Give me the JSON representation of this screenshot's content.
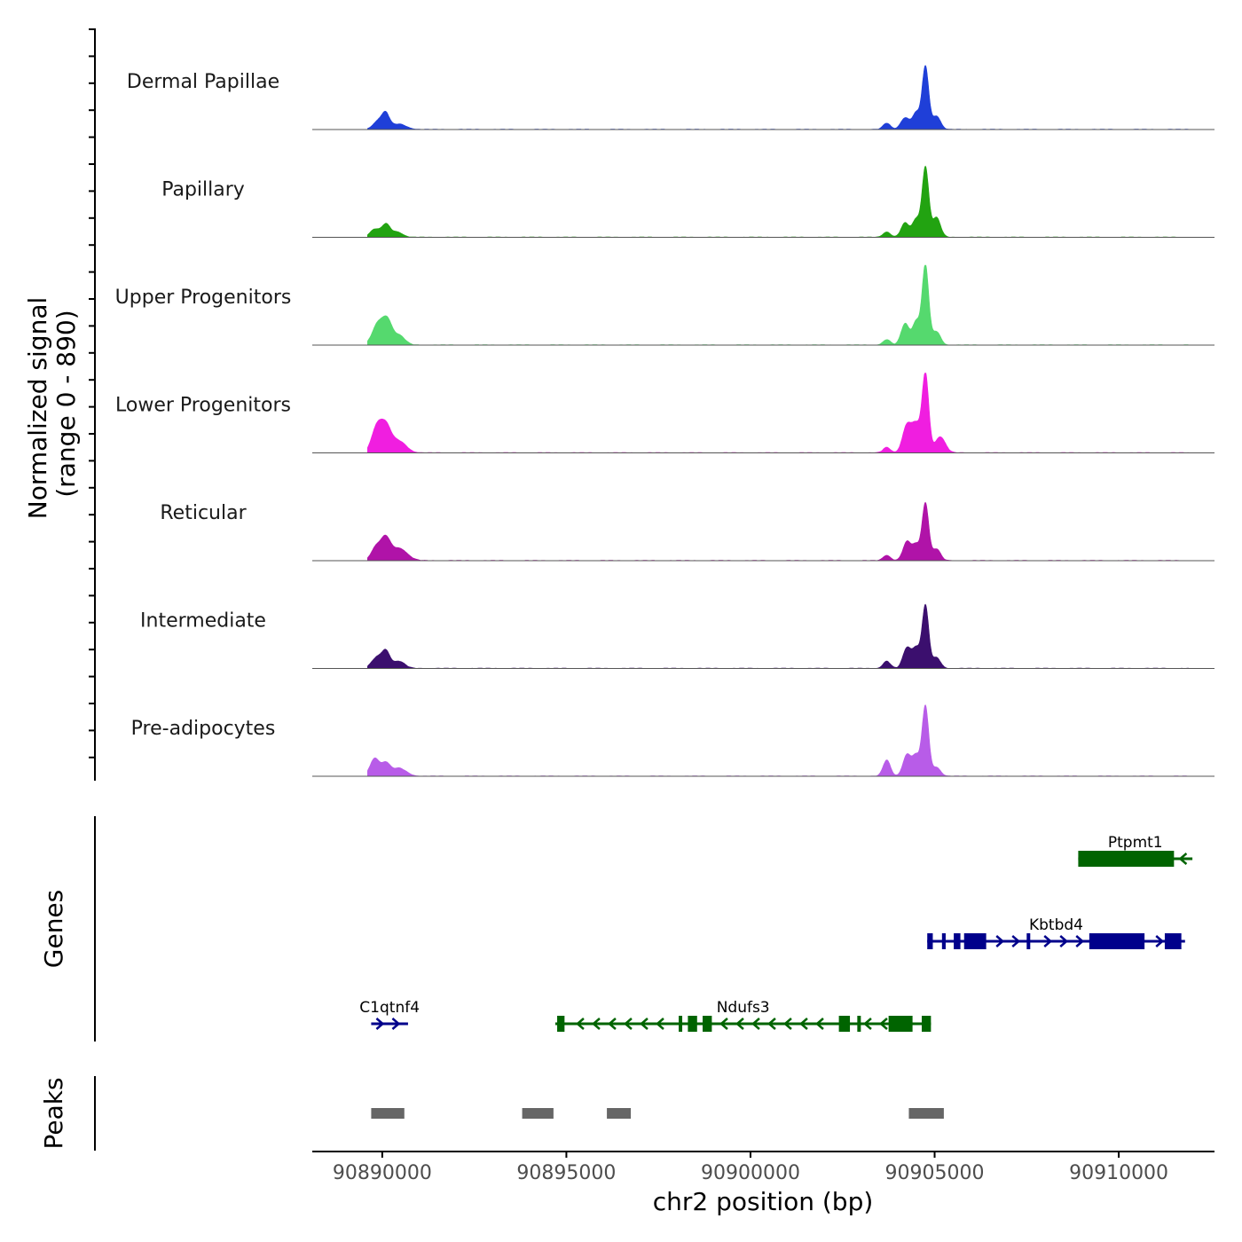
{
  "chart_data": {
    "type": "genome-track",
    "y_axis_label_line1": "Normalized signal",
    "y_axis_label_line2": "(range 0 - 890)",
    "y_range": [
      0,
      890
    ],
    "x_axis_label": "chr2 position (bp)",
    "x_range": [
      90888100,
      90912600
    ],
    "x_ticks": [
      90890000,
      90895000,
      90900000,
      90905000,
      90910000
    ],
    "x_tick_labels": [
      "90890000",
      "90895000",
      "90900000",
      "90905000",
      "90910000"
    ],
    "genes_label": "Genes",
    "peaks_label": "Peaks",
    "tracks": [
      {
        "name": "Dermal Papillae",
        "color": "#1f3fd8",
        "peaks": [
          [
            90889900,
            140,
            100
          ],
          [
            90890100,
            100,
            150
          ],
          [
            90890450,
            200,
            60
          ],
          [
            90903700,
            100,
            70
          ],
          [
            90904200,
            120,
            130
          ],
          [
            90904500,
            100,
            180
          ],
          [
            90904750,
            90,
            700
          ],
          [
            90905050,
            110,
            150
          ]
        ]
      },
      {
        "name": "Papillary",
        "color": "#22a311",
        "peaks": [
          [
            90889800,
            130,
            90
          ],
          [
            90890100,
            110,
            140
          ],
          [
            90890400,
            150,
            60
          ],
          [
            90903700,
            100,
            60
          ],
          [
            90904200,
            110,
            160
          ],
          [
            90904500,
            100,
            200
          ],
          [
            90904750,
            90,
            780
          ],
          [
            90905050,
            110,
            220
          ]
        ]
      },
      {
        "name": "Upper Progenitors",
        "color": "#55d96e",
        "peaks": [
          [
            90889900,
            160,
            250
          ],
          [
            90890150,
            120,
            220
          ],
          [
            90890450,
            160,
            110
          ],
          [
            90903700,
            100,
            60
          ],
          [
            90904200,
            110,
            240
          ],
          [
            90904500,
            100,
            260
          ],
          [
            90904750,
            90,
            890
          ],
          [
            90905050,
            110,
            150
          ]
        ]
      },
      {
        "name": "Lower Progenitors",
        "color": "#f01ee0",
        "peaks": [
          [
            90889850,
            140,
            280
          ],
          [
            90890100,
            140,
            270
          ],
          [
            90890450,
            200,
            130
          ],
          [
            90903700,
            100,
            60
          ],
          [
            90904250,
            120,
            310
          ],
          [
            90904500,
            110,
            300
          ],
          [
            90904750,
            90,
            880
          ],
          [
            90905150,
            140,
            180
          ]
        ]
      },
      {
        "name": "Reticular",
        "color": "#b013a8",
        "peaks": [
          [
            90889850,
            140,
            160
          ],
          [
            90890100,
            120,
            210
          ],
          [
            90890450,
            220,
            140
          ],
          [
            90903700,
            100,
            60
          ],
          [
            90904250,
            110,
            210
          ],
          [
            90904500,
            100,
            170
          ],
          [
            90904750,
            90,
            640
          ],
          [
            90905050,
            110,
            130
          ]
        ]
      },
      {
        "name": "Intermediate",
        "color": "#3b0f6e",
        "peaks": [
          [
            90889850,
            140,
            120
          ],
          [
            90890100,
            110,
            180
          ],
          [
            90890450,
            160,
            80
          ],
          [
            90903700,
            100,
            80
          ],
          [
            90904250,
            110,
            230
          ],
          [
            90904500,
            100,
            220
          ],
          [
            90904750,
            90,
            700
          ],
          [
            90905050,
            110,
            120
          ]
        ]
      },
      {
        "name": "Pre-adipocytes",
        "color": "#b85ce8",
        "peaks": [
          [
            90889800,
            130,
            200
          ],
          [
            90890100,
            110,
            130
          ],
          [
            90890450,
            200,
            90
          ],
          [
            90903700,
            100,
            180
          ],
          [
            90904250,
            110,
            240
          ],
          [
            90904500,
            100,
            220
          ],
          [
            90904750,
            90,
            780
          ],
          [
            90905050,
            110,
            100
          ]
        ]
      }
    ],
    "genes": [
      {
        "name": "Ptpmt1",
        "strand": "-",
        "color": "#006400",
        "row": 0,
        "start": 90908900,
        "end": 90912000,
        "exons": [
          [
            90908900,
            90911500
          ]
        ]
      },
      {
        "name": "Kbtbd4",
        "strand": "+",
        "color": "#00008b",
        "row": 1,
        "start": 90904800,
        "end": 90911800,
        "exons": [
          [
            90904800,
            90904950
          ],
          [
            90905200,
            90905300
          ],
          [
            90905520,
            90905700
          ],
          [
            90905800,
            90906400
          ],
          [
            90907500,
            90907560
          ],
          [
            90909200,
            90910700
          ],
          [
            90911250,
            90911700
          ]
        ]
      },
      {
        "name": "C1qtnf4",
        "strand": "+",
        "color": "#00008b",
        "row": 2,
        "start": 90889700,
        "end": 90890700,
        "exons": []
      },
      {
        "name": "Ndufs3",
        "strand": "-",
        "color": "#006400",
        "row": 2,
        "start": 90894700,
        "end": 90904900,
        "exons": [
          [
            90894750,
            90894950
          ],
          [
            90898050,
            90898100
          ],
          [
            90898300,
            90898550
          ],
          [
            90898700,
            90898950
          ],
          [
            90902400,
            90902700
          ],
          [
            90902900,
            90902950
          ],
          [
            90903750,
            90904400
          ],
          [
            90904650,
            90904900
          ]
        ]
      }
    ],
    "peak_regions": [
      [
        90889700,
        90890600
      ],
      [
        90893800,
        90894650
      ],
      [
        90896100,
        90896750
      ],
      [
        90904300,
        90905250
      ]
    ]
  }
}
